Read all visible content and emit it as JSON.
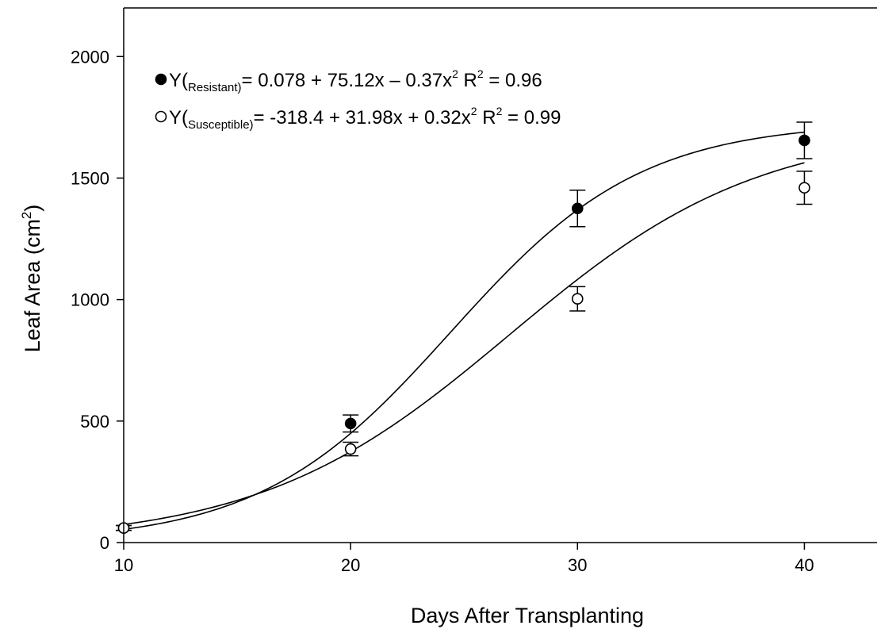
{
  "chart_data": {
    "type": "scatter",
    "title": "",
    "xlabel": "Days After Transplanting",
    "ylabel": {
      "main": "Leaf Area (cm",
      "sup": "2",
      "close": ")"
    },
    "xlim": [
      10,
      43.2
    ],
    "ylim": [
      0,
      2200
    ],
    "xticks": [
      10,
      20,
      30,
      40
    ],
    "yticks": [
      0,
      500,
      1000,
      1500,
      2000
    ],
    "grid": false,
    "legend_placement": "top-left",
    "series": [
      {
        "key": "resistant",
        "marker": "filled-circle",
        "color": "#000000",
        "legend": {
          "prefix": "Y(",
          "sub": "Resistant)",
          "equation": "= 0.078 + 75.12x – 0.37x",
          "eq_sup": "2",
          "r2_label": "R",
          "r2_sup": "2",
          "r2_value": "= 0.96"
        },
        "points": [
          {
            "x": 10,
            "y": 60,
            "err": 10
          },
          {
            "x": 20,
            "y": 490,
            "err": 35
          },
          {
            "x": 30,
            "y": 1375,
            "err": 75
          },
          {
            "x": 40,
            "y": 1655,
            "err": 75
          }
        ],
        "curve": {
          "type": "sigmoid",
          "a": 1730,
          "x0": 24.4,
          "b": 4.2
        }
      },
      {
        "key": "susceptible",
        "marker": "open-circle",
        "color": "#000000",
        "legend": {
          "prefix": "Y(",
          "sub": "Susceptible)",
          "equation": "= -318.4 + 31.98x + 0.32x",
          "eq_sup": "2",
          "r2_label": "R",
          "r2_sup": "2",
          "r2_value": "= 0.99"
        },
        "points": [
          {
            "x": 10,
            "y": 60,
            "err": 10
          },
          {
            "x": 20,
            "y": 385,
            "err": 28
          },
          {
            "x": 30,
            "y": 1003,
            "err": 50
          },
          {
            "x": 40,
            "y": 1460,
            "err": 68
          }
        ],
        "curve": {
          "type": "sigmoid",
          "a": 1710,
          "x0": 27.0,
          "b": 5.5
        }
      }
    ]
  }
}
